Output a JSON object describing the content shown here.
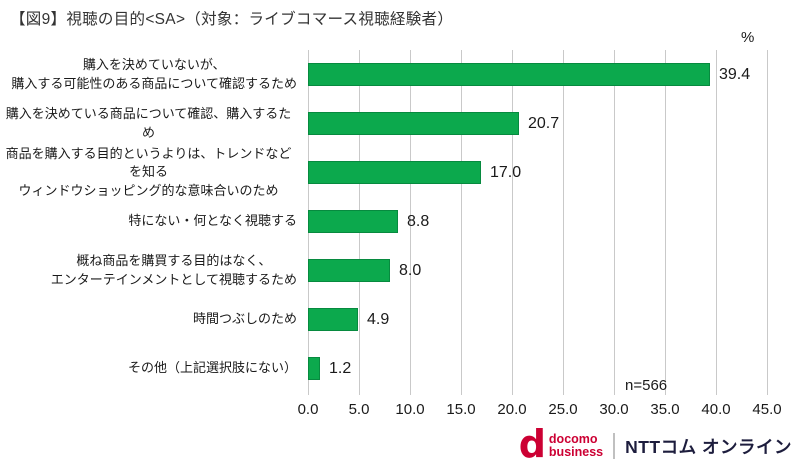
{
  "title": "【図9】視聴の目的<SA>（対象：ライブコマース視聴経験者）",
  "axis_unit": "%",
  "sample_size": "n=566",
  "chart_data": {
    "type": "bar",
    "orientation": "horizontal",
    "title": "視聴の目的<SA>（対象：ライブコマース視聴経験者）",
    "categories": [
      [
        "購入を決めていないが、",
        "購入する可能性のある商品について確認するため"
      ],
      [
        "購入を決めている商品について確認、購入するため"
      ],
      [
        "商品を購入する目的というよりは、トレンドなどを知る",
        "ウィンドウショッピング的な意味合いのため"
      ],
      [
        "特にない・何となく視聴する"
      ],
      [
        "概ね商品を購買する目的はなく、",
        "エンターテインメントとして視聴するため"
      ],
      [
        "時間つぶしのため"
      ],
      [
        "その他（上記選択肢にない）"
      ]
    ],
    "values": [
      39.4,
      20.7,
      17.0,
      8.8,
      8.0,
      4.9,
      1.2
    ],
    "value_labels": [
      "39.4",
      "20.7",
      "17.0",
      "8.8",
      "8.0",
      "4.9",
      "1.2"
    ],
    "xlabel": "%",
    "ylabel": "",
    "xlim": [
      0,
      45
    ],
    "xticks": [
      "0.0",
      "5.0",
      "10.0",
      "15.0",
      "20.0",
      "25.0",
      "30.0",
      "35.0",
      "40.0",
      "45.0"
    ],
    "grid": true,
    "legend": false,
    "annotation": "n=566",
    "bar_color": "#0CA94D",
    "bar_border_color": "#078A3F",
    "gridline_color": "#C9C9C9"
  },
  "footer": {
    "docomo_wordmark_top": "docomo",
    "docomo_wordmark_bottom": "business",
    "docomo_d": "d",
    "ntt_wordmark": "NTTコム オンライン",
    "docomo_red": "#CC0033",
    "ntt_navy": "#1D1D3D"
  }
}
